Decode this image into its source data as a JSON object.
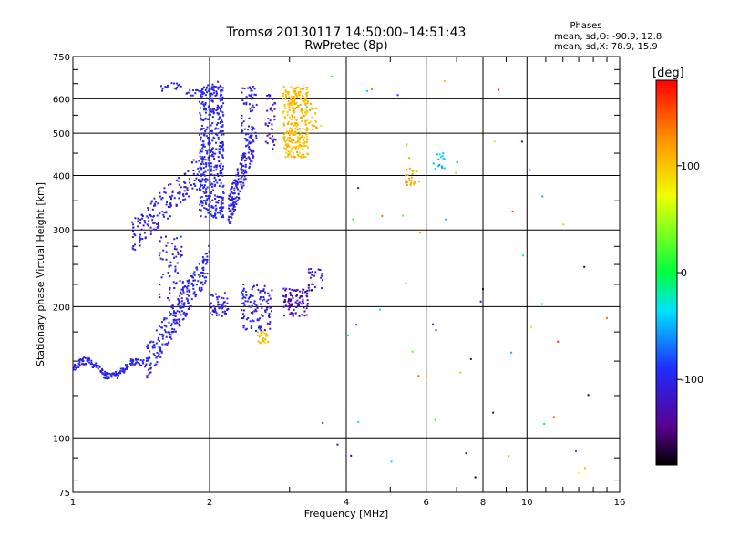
{
  "chart_data": {
    "type": "scatter",
    "title": "Tromsø 20130117 14:50:00–14:51:43",
    "subtitle": "RwPretec (8p)",
    "xlabel": "Frequency [MHz]",
    "ylabel": "Stationary phase Virtual Height [km]",
    "x_scale": "log2",
    "y_scale": "log",
    "xlim": [
      1,
      16
    ],
    "ylim": [
      75,
      750
    ],
    "x_ticks": [
      1,
      2,
      4,
      6,
      8,
      10,
      16
    ],
    "x_tick_labels": [
      "1",
      "2",
      "4",
      "6",
      "8",
      "10",
      "16"
    ],
    "y_ticks": [
      75,
      100,
      200,
      300,
      400,
      500,
      600,
      750
    ],
    "y_tick_labels": [
      "75",
      "100",
      "200",
      "300",
      "400",
      "500",
      "600",
      "750"
    ],
    "grid": true,
    "phase_stats": {
      "heading": "Phases",
      "line_o": "mean, sd,O: -90.9, 12.8",
      "line_x": "mean, sd,X:  78.9, 15.9"
    },
    "colorbar": {
      "label": "[deg]",
      "range": [
        -180,
        180
      ],
      "ticks": [
        100,
        0,
        -100
      ],
      "tick_labels": [
        "100",
        "0",
        "-100"
      ]
    },
    "echo_groups": [
      {
        "x0": 1.0,
        "x1": 1.45,
        "y0": 138,
        "y1": 150,
        "phase": -100,
        "n": 160,
        "mode": "trace"
      },
      {
        "x0": 1.45,
        "x1": 2.0,
        "y0": 148,
        "y1": 255,
        "phase": -100,
        "n": 260,
        "mode": "ramp"
      },
      {
        "x0": 1.55,
        "x1": 1.75,
        "y0": 200,
        "y1": 290,
        "phase": -105,
        "n": 70,
        "mode": "box"
      },
      {
        "x0": 1.35,
        "x1": 1.95,
        "y0": 290,
        "y1": 420,
        "phase": -105,
        "n": 180,
        "mode": "ramp"
      },
      {
        "x0": 1.9,
        "x1": 2.15,
        "y0": 320,
        "y1": 640,
        "phase": -100,
        "n": 420,
        "mode": "box"
      },
      {
        "x0": 1.55,
        "x1": 2.15,
        "y0": 615,
        "y1": 645,
        "phase": -100,
        "n": 40,
        "mode": "trace"
      },
      {
        "x0": 2.2,
        "x1": 2.5,
        "y0": 330,
        "y1": 480,
        "phase": -105,
        "n": 180,
        "mode": "ramp"
      },
      {
        "x0": 2.35,
        "x1": 2.55,
        "y0": 480,
        "y1": 640,
        "phase": -105,
        "n": 60,
        "mode": "box"
      },
      {
        "x0": 2.65,
        "x1": 2.8,
        "y0": 460,
        "y1": 620,
        "phase": -110,
        "n": 40,
        "mode": "box"
      },
      {
        "x0": 2.0,
        "x1": 2.2,
        "y0": 190,
        "y1": 215,
        "phase": -105,
        "n": 50,
        "mode": "box"
      },
      {
        "x0": 2.35,
        "x1": 2.75,
        "y0": 175,
        "y1": 225,
        "phase": -105,
        "n": 110,
        "mode": "box"
      },
      {
        "x0": 2.9,
        "x1": 3.3,
        "y0": 190,
        "y1": 220,
        "phase": -125,
        "n": 90,
        "mode": "box"
      },
      {
        "x0": 2.55,
        "x1": 2.7,
        "y0": 165,
        "y1": 175,
        "phase": 100,
        "n": 25,
        "mode": "box"
      },
      {
        "x0": 2.9,
        "x1": 3.3,
        "y0": 440,
        "y1": 640,
        "phase": 105,
        "n": 280,
        "mode": "box"
      },
      {
        "x0": 3.25,
        "x1": 3.45,
        "y0": 510,
        "y1": 590,
        "phase": 110,
        "n": 25,
        "mode": "box"
      },
      {
        "x0": 3.3,
        "x1": 3.55,
        "y0": 215,
        "y1": 245,
        "phase": -110,
        "n": 25,
        "mode": "box"
      },
      {
        "x0": 5.4,
        "x1": 5.8,
        "y0": 380,
        "y1": 420,
        "phase": 110,
        "n": 25,
        "mode": "box"
      },
      {
        "x0": 6.2,
        "x1": 6.6,
        "y0": 410,
        "y1": 450,
        "phase": -50,
        "n": 15,
        "mode": "box"
      },
      {
        "x0": 3.0,
        "x1": 15.5,
        "y0": 80,
        "y1": 700,
        "phase": 0,
        "n": 60,
        "mode": "scatter"
      }
    ]
  }
}
